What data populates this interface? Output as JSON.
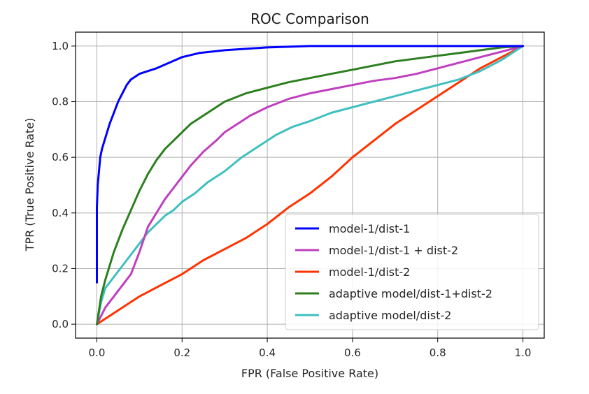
{
  "chart_data": {
    "type": "line",
    "title": "ROC Comparison",
    "xlabel": "FPR (False Positive Rate)",
    "ylabel": "TPR (True Positive Rate)",
    "xlim": [
      -0.05,
      1.05
    ],
    "ylim": [
      -0.05,
      1.05
    ],
    "xticks": [
      0.0,
      0.2,
      0.4,
      0.6,
      0.8,
      1.0
    ],
    "yticks": [
      0.0,
      0.2,
      0.4,
      0.6,
      0.8,
      1.0
    ],
    "xtick_labels": [
      "0.0",
      "0.2",
      "0.4",
      "0.6",
      "0.8",
      "1.0"
    ],
    "ytick_labels": [
      "0.0",
      "0.2",
      "0.4",
      "0.6",
      "0.8",
      "1.0"
    ],
    "grid": true,
    "legend_position": "bottom-right",
    "series": [
      {
        "name": "model-1/dist-1",
        "color": "#0000ff",
        "x": [
          0.0,
          0.0,
          0.002,
          0.005,
          0.008,
          0.012,
          0.02,
          0.03,
          0.04,
          0.05,
          0.06,
          0.07,
          0.08,
          0.1,
          0.12,
          0.14,
          0.17,
          0.2,
          0.24,
          0.3,
          0.4,
          0.5,
          0.7,
          1.0
        ],
        "y": [
          0.15,
          0.42,
          0.5,
          0.55,
          0.6,
          0.63,
          0.67,
          0.72,
          0.76,
          0.8,
          0.83,
          0.86,
          0.88,
          0.9,
          0.91,
          0.92,
          0.94,
          0.96,
          0.975,
          0.985,
          0.995,
          1.0,
          1.0,
          1.0
        ]
      },
      {
        "name": "model-1/dist-1 + dist-2",
        "color": "#bf3fbf",
        "x": [
          0.0,
          0.02,
          0.05,
          0.08,
          0.1,
          0.12,
          0.14,
          0.16,
          0.18,
          0.2,
          0.22,
          0.25,
          0.28,
          0.3,
          0.33,
          0.36,
          0.4,
          0.45,
          0.5,
          0.55,
          0.6,
          0.65,
          0.7,
          0.75,
          0.8,
          0.85,
          0.9,
          0.95,
          1.0
        ],
        "y": [
          0.0,
          0.06,
          0.12,
          0.18,
          0.26,
          0.35,
          0.4,
          0.45,
          0.49,
          0.53,
          0.57,
          0.62,
          0.66,
          0.69,
          0.72,
          0.75,
          0.78,
          0.81,
          0.83,
          0.845,
          0.86,
          0.875,
          0.885,
          0.9,
          0.92,
          0.94,
          0.96,
          0.98,
          1.0
        ]
      },
      {
        "name": "model-1/dist-2",
        "color": "#ff3300",
        "x": [
          0.0,
          0.05,
          0.1,
          0.15,
          0.2,
          0.25,
          0.3,
          0.35,
          0.4,
          0.45,
          0.5,
          0.55,
          0.6,
          0.65,
          0.7,
          0.75,
          0.8,
          0.85,
          0.9,
          0.95,
          1.0
        ],
        "y": [
          0.0,
          0.05,
          0.1,
          0.14,
          0.18,
          0.23,
          0.27,
          0.31,
          0.36,
          0.42,
          0.47,
          0.53,
          0.6,
          0.66,
          0.72,
          0.77,
          0.82,
          0.87,
          0.92,
          0.96,
          1.0
        ]
      },
      {
        "name": "adaptive model/dist-1+dist-2",
        "color": "#2c7f1f",
        "x": [
          0.0,
          0.01,
          0.02,
          0.04,
          0.06,
          0.08,
          0.1,
          0.12,
          0.14,
          0.16,
          0.18,
          0.2,
          0.22,
          0.25,
          0.28,
          0.3,
          0.35,
          0.4,
          0.45,
          0.5,
          0.55,
          0.6,
          0.65,
          0.7,
          0.75,
          0.8,
          0.85,
          0.9,
          0.95,
          1.0
        ],
        "y": [
          0.0,
          0.1,
          0.16,
          0.26,
          0.34,
          0.41,
          0.48,
          0.54,
          0.59,
          0.63,
          0.66,
          0.69,
          0.72,
          0.75,
          0.78,
          0.8,
          0.83,
          0.85,
          0.87,
          0.885,
          0.9,
          0.915,
          0.93,
          0.945,
          0.955,
          0.965,
          0.975,
          0.985,
          0.995,
          1.0
        ]
      },
      {
        "name": "adaptive model/dist-2",
        "color": "#3fbfbf",
        "x": [
          0.0,
          0.01,
          0.02,
          0.04,
          0.06,
          0.08,
          0.1,
          0.12,
          0.14,
          0.16,
          0.18,
          0.2,
          0.23,
          0.26,
          0.3,
          0.34,
          0.38,
          0.42,
          0.46,
          0.5,
          0.55,
          0.6,
          0.65,
          0.7,
          0.75,
          0.8,
          0.85,
          0.9,
          0.95,
          1.0
        ],
        "y": [
          0.0,
          0.08,
          0.13,
          0.17,
          0.21,
          0.25,
          0.29,
          0.33,
          0.36,
          0.39,
          0.41,
          0.44,
          0.47,
          0.51,
          0.55,
          0.6,
          0.64,
          0.68,
          0.71,
          0.73,
          0.76,
          0.78,
          0.8,
          0.82,
          0.84,
          0.86,
          0.88,
          0.91,
          0.95,
          1.0
        ]
      }
    ]
  }
}
